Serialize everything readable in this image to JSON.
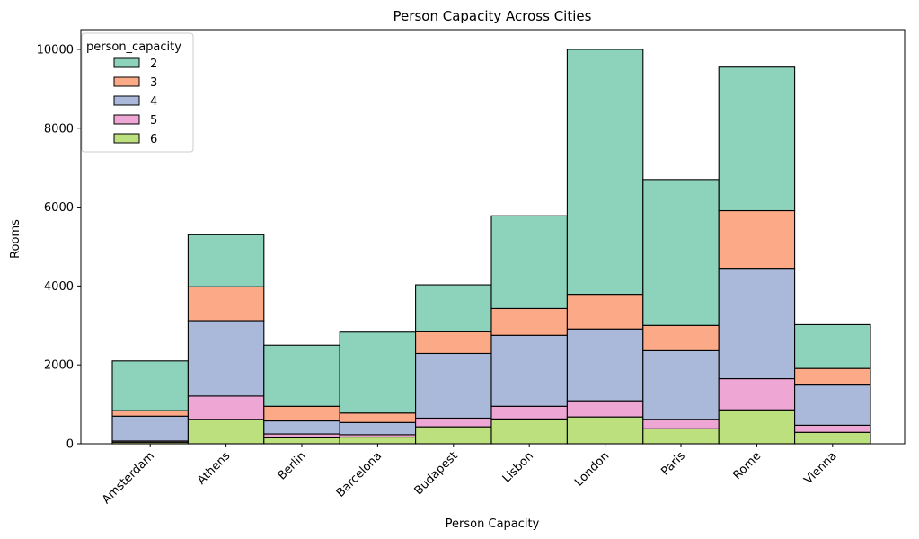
{
  "chart_data": {
    "type": "bar",
    "stacked": true,
    "title": "Person Capacity Across Cities",
    "xlabel": "Person Capacity",
    "ylabel": "Rooms",
    "ylim": [
      0,
      10500
    ],
    "yticks": [
      0,
      2000,
      4000,
      6000,
      8000,
      10000
    ],
    "yticklabels": [
      "0",
      "2000",
      "4000",
      "6000",
      "8000",
      "10000"
    ],
    "categories": [
      "Amsterdam",
      "Athens",
      "Berlin",
      "Barcelona",
      "Budapest",
      "Lisbon",
      "London",
      "Paris",
      "Rome",
      "Vienna"
    ],
    "legend": {
      "title": "person_capacity",
      "position": "upper-left"
    },
    "grid": false,
    "series": [
      {
        "name": "6",
        "color": "#bde07e",
        "values": [
          40,
          620,
          150,
          170,
          430,
          630,
          680,
          380,
          860,
          290
        ]
      },
      {
        "name": "5",
        "color": "#eea6d4",
        "values": [
          30,
          590,
          100,
          60,
          220,
          320,
          410,
          240,
          790,
          180
        ]
      },
      {
        "name": "4",
        "color": "#aab8da",
        "values": [
          630,
          1910,
          330,
          310,
          1640,
          1800,
          1820,
          1740,
          2800,
          1020
        ]
      },
      {
        "name": "3",
        "color": "#fca988",
        "values": [
          140,
          860,
          370,
          240,
          550,
          680,
          880,
          640,
          1460,
          420
        ]
      },
      {
        "name": "2",
        "color": "#8dd3bb",
        "values": [
          1260,
          1320,
          1550,
          2050,
          1190,
          2350,
          6210,
          3700,
          3640,
          1110
        ]
      }
    ]
  }
}
